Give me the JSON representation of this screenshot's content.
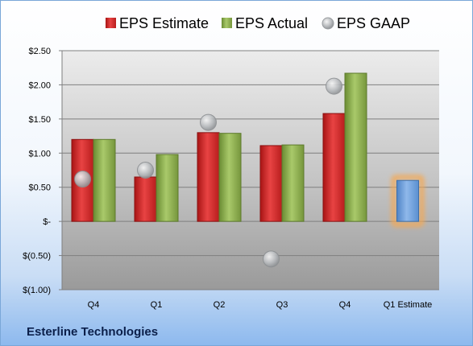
{
  "chart_data": {
    "type": "bar",
    "title": "",
    "xlabel": "",
    "ylabel": "",
    "categories": [
      "Q4",
      "Q1",
      "Q2",
      "Q3",
      "Q4",
      "Q1 Estimate"
    ],
    "ylim": [
      -1.0,
      2.5
    ],
    "yticks": [
      2.5,
      2.0,
      1.5,
      1.0,
      0.5,
      0,
      -0.5,
      -1.0
    ],
    "ytick_labels": [
      "$2.50",
      "$2.00",
      "$1.50",
      "$1.00",
      "$0.50",
      "$-",
      "$(0.50)",
      "$(1.00)"
    ],
    "grid": true,
    "legend_position": "top",
    "series": [
      {
        "name": "EPS Estimate",
        "kind": "bar",
        "color": "#d42a2a",
        "values": [
          1.2,
          0.65,
          1.3,
          1.11,
          1.58,
          null
        ]
      },
      {
        "name": "EPS Actual",
        "kind": "bar",
        "color": "#8fb04e",
        "values": [
          1.2,
          0.98,
          1.29,
          1.12,
          2.17,
          null
        ]
      },
      {
        "name": "EPS GAAP",
        "kind": "scatter",
        "color": "#b0b4b8",
        "values": [
          0.62,
          0.75,
          1.45,
          -0.55,
          1.98,
          null
        ]
      },
      {
        "name": "",
        "kind": "bar",
        "color": "#6fa0dc",
        "highlight": "#f5a953",
        "values": [
          null,
          null,
          null,
          null,
          null,
          0.6
        ]
      }
    ]
  },
  "footer": {
    "company": "Esterline Technologies"
  }
}
